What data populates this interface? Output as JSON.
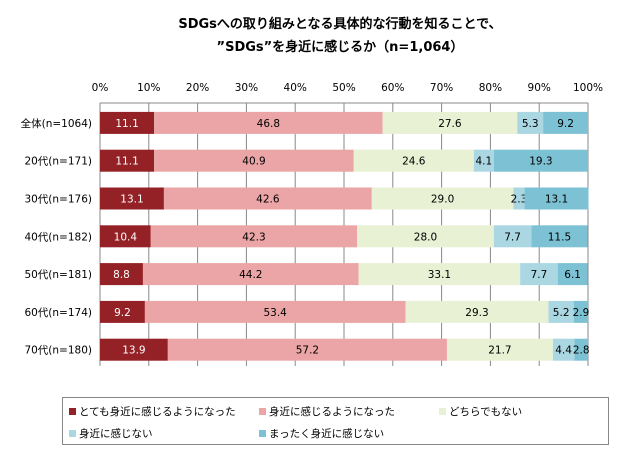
{
  "chart_data": {
    "type": "bar",
    "orientation": "horizontal",
    "stacked": true,
    "title": [
      "SDGsへの取り組みとなる具体的な行動を知ることで、",
      "”SDGs”を身近に感じるか（n=1,064）"
    ],
    "categories": [
      "全体(n=1064)",
      "20代(n=171)",
      "30代(n=176)",
      "40代(n=182)",
      "50代(n=181)",
      "60代(n=174)",
      "70代(n=180)"
    ],
    "xlim": [
      0,
      100
    ],
    "xticks": [
      "0%",
      "10%",
      "20%",
      "30%",
      "40%",
      "50%",
      "60%",
      "70%",
      "80%",
      "90%",
      "100%"
    ],
    "xaxis_position": "top",
    "grid": true,
    "legend_placement": "bottom",
    "series": [
      {
        "name": "とても身近に感じるようになった",
        "color": "#942126",
        "label_color": "#ffffff",
        "values": [
          11.1,
          11.1,
          13.1,
          10.4,
          8.8,
          9.2,
          13.9
        ]
      },
      {
        "name": "身近に感じるようになった",
        "color": "#eba5a6",
        "label_color": "#000000",
        "values": [
          46.8,
          40.9,
          42.6,
          42.3,
          44.2,
          53.4,
          57.2
        ]
      },
      {
        "name": "どちらでもない",
        "color": "#e9f1d5",
        "label_color": "#000000",
        "values": [
          27.6,
          24.6,
          29.0,
          28.0,
          33.1,
          29.3,
          21.7
        ]
      },
      {
        "name": "身近に感じない",
        "color": "#abd7e3",
        "label_color": "#000000",
        "values": [
          5.3,
          4.1,
          2.3,
          7.7,
          7.7,
          5.2,
          4.4
        ]
      },
      {
        "name": "まったく身近に感じない",
        "color": "#7dc2d4",
        "label_color": "#000000",
        "values": [
          9.2,
          19.3,
          13.1,
          11.5,
          6.1,
          2.9,
          2.8
        ]
      }
    ]
  }
}
